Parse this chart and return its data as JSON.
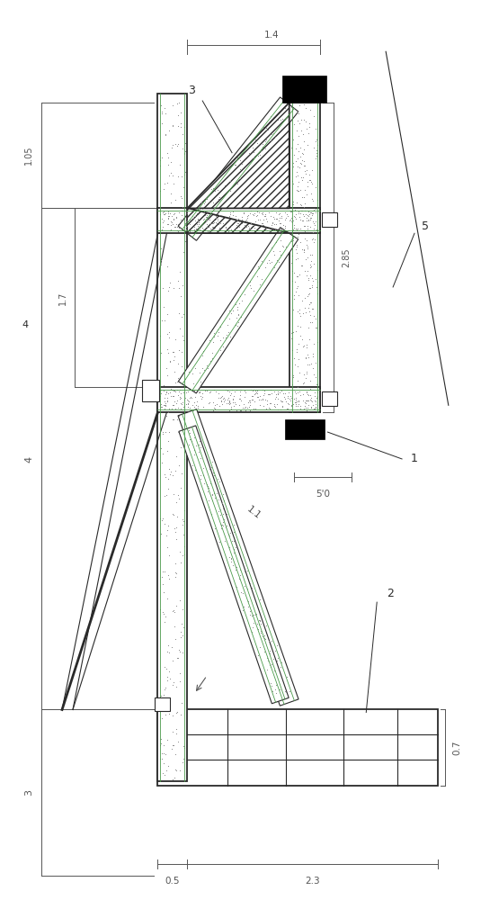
{
  "bg_color": "#ffffff",
  "lc": "#2a2a2a",
  "dim_c": "#555555",
  "gravel_dot": "#888888",
  "green_line": "#4a9a4a",
  "hatch_color": "#333333"
}
